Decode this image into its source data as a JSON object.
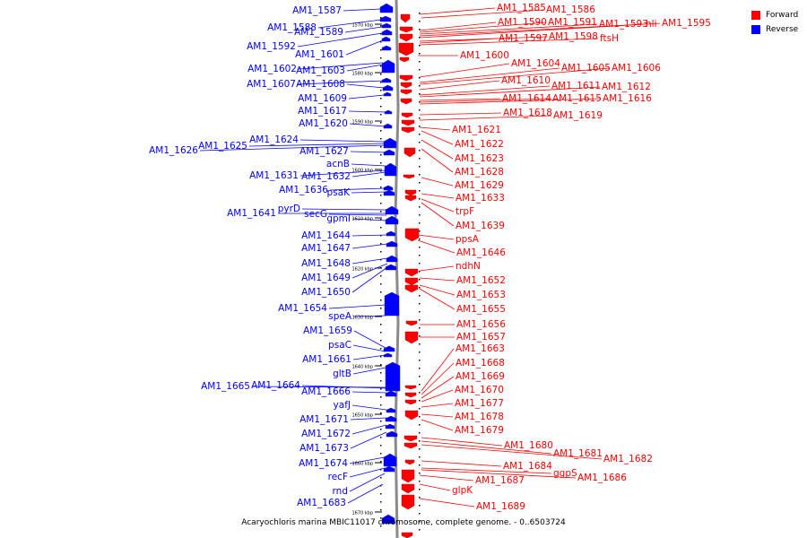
{
  "chart_data": {
    "type": "genome-map",
    "caption": "Acaryochloris marina MBIC11017 chromosome, complete genome. - 0..6503724",
    "legend": [
      {
        "label": "Forward",
        "color": "#ff0000"
      },
      {
        "label": "Reverse",
        "color": "#0000ff"
      }
    ],
    "ticks": [
      "1570 kbp",
      "1580 kbp",
      "1590 kbp",
      "1600 kbp",
      "1610 kbp",
      "1620 kbp",
      "1630 kbp",
      "1640 kbp",
      "1650 kbp",
      "1660 kbp",
      "1670 kbp"
    ],
    "forward_labels": [
      "AM1_1585",
      "AM1_1586",
      "AM1_1590",
      "AM1_1591",
      "AM1_1593",
      "hli",
      "AM1_1595",
      "AM1_1597",
      "AM1_1598",
      "ftsH",
      "AM1_1600",
      "AM1_1604",
      "AM1_1605",
      "AM1_1606",
      "AM1_1610",
      "AM1_1611",
      "AM1_1612",
      "AM1_1614",
      "AM1_1615",
      "AM1_1616",
      "AM1_1618",
      "AM1_1619",
      "AM1_1621",
      "AM1_1622",
      "AM1_1623",
      "AM1_1628",
      "AM1_1629",
      "AM1_1633",
      "trpF",
      "AM1_1639",
      "ppsA",
      "AM1_1646",
      "ndhN",
      "AM1_1652",
      "AM1_1653",
      "AM1_1655",
      "AM1_1656",
      "AM1_1657",
      "AM1_1663",
      "AM1_1668",
      "AM1_1669",
      "AM1_1670",
      "AM1_1677",
      "AM1_1678",
      "AM1_1679",
      "AM1_1680",
      "AM1_1681",
      "AM1_1682",
      "AM1_1684",
      "ggpS",
      "AM1_1686",
      "AM1_1687",
      "glpK",
      "AM1_1689"
    ],
    "reverse_labels": [
      "AM1_1587",
      "AM1_1588",
      "AM1_1589",
      "AM1_1592",
      "AM1_1601",
      "AM1_1602",
      "AM1_1603",
      "AM1_1607",
      "AM1_1608",
      "AM1_1609",
      "AM1_1617",
      "AM1_1620",
      "AM1_1624",
      "AM1_1626",
      "AM1_1625",
      "AM1_1627",
      "acnB",
      "AM1_1631",
      "AM1_1632",
      "AM1_1636",
      "psaK",
      "pyrD",
      "AM1_1641",
      "secG",
      "gpmI",
      "AM1_1644",
      "AM1_1647",
      "AM1_1648",
      "AM1_1649",
      "AM1_1650",
      "AM1_1654",
      "speA",
      "AM1_1659",
      "psaC",
      "AM1_1661",
      "gltB",
      "AM1_1665",
      "AM1_1664",
      "AM1_1666",
      "yafJ",
      "AM1_1671",
      "AM1_1672",
      "AM1_1673",
      "AM1_1674",
      "recF",
      "rnd",
      "AM1_1683"
    ]
  }
}
